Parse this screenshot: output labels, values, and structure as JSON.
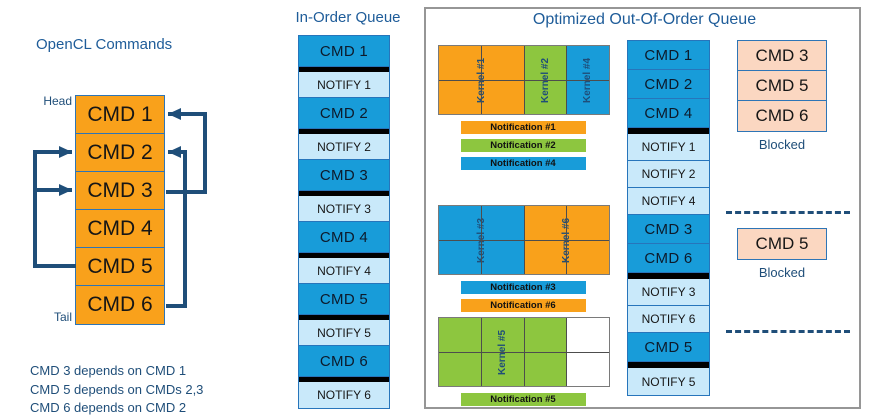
{
  "colors": {
    "orange": "#F9A11B",
    "green": "#8DC63F",
    "blue": "#189CD9",
    "white": "#FFFFFF",
    "notify_blue": "#C9E9FA",
    "blocked_fill": "#FBD7C1",
    "navy": "#1F4E79",
    "title_blue": "#1E5C99"
  },
  "left_panel": {
    "title": "OpenCL Commands",
    "head_label": "Head",
    "tail_label": "Tail",
    "commands": [
      "CMD 1",
      "CMD 2",
      "CMD 3",
      "CMD 4",
      "CMD 5",
      "CMD 6"
    ],
    "dependency_notes": [
      "CMD 3 depends on CMD 1",
      "CMD 5 depends on CMDs 2,3",
      "CMD 6 depends on CMD 2"
    ]
  },
  "in_order_queue": {
    "title": "In-Order Queue",
    "rows": [
      {
        "label": "CMD 1",
        "kind": "cmd",
        "sep": true
      },
      {
        "label": "NOTIFY 1",
        "kind": "notify"
      },
      {
        "label": "CMD 2",
        "kind": "cmd",
        "sep": true
      },
      {
        "label": "NOTIFY 2",
        "kind": "notify"
      },
      {
        "label": "CMD 3",
        "kind": "cmd",
        "sep": true
      },
      {
        "label": "NOTIFY 3",
        "kind": "notify"
      },
      {
        "label": "CMD 4",
        "kind": "cmd",
        "sep": true
      },
      {
        "label": "NOTIFY 4",
        "kind": "notify"
      },
      {
        "label": "CMD 5",
        "kind": "cmd",
        "sep": true
      },
      {
        "label": "NOTIFY 5",
        "kind": "notify"
      },
      {
        "label": "CMD 6",
        "kind": "cmd",
        "sep": true
      },
      {
        "label": "NOTIFY 6",
        "kind": "notify"
      }
    ]
  },
  "ooo_panel": {
    "title": "Optimized Out-Of-Order Queue",
    "kernel_groups": [
      {
        "blocks": [
          {
            "label": "Kernel #1",
            "color": "orange",
            "cols": 2
          },
          {
            "label": "Kernel #2",
            "color": "green",
            "cols": 1
          },
          {
            "label": "Kernel #4",
            "color": "blue",
            "cols": 1
          }
        ],
        "notifications": [
          {
            "label": "Notification #1",
            "color": "orange"
          },
          {
            "label": "Notification #2",
            "color": "green"
          },
          {
            "label": "Notification #4",
            "color": "blue"
          }
        ]
      },
      {
        "blocks": [
          {
            "label": "Kernel #3",
            "color": "blue",
            "cols": 2
          },
          {
            "label": "Kernel #6",
            "color": "orange",
            "cols": 2
          }
        ],
        "notifications": [
          {
            "label": "Notification #3",
            "color": "blue"
          },
          {
            "label": "Notification #6",
            "color": "orange"
          }
        ]
      },
      {
        "blocks": [
          {
            "label": "Kernel #5",
            "color": "green",
            "cols": 3
          },
          {
            "label": "",
            "color": "white",
            "cols": 1
          }
        ],
        "notifications": [
          {
            "label": "Notification #5",
            "color": "green"
          }
        ]
      }
    ],
    "queue_rows": [
      {
        "label": "CMD 1",
        "kind": "cmd"
      },
      {
        "label": "CMD 2",
        "kind": "cmd"
      },
      {
        "label": "CMD 4",
        "kind": "cmd",
        "sep": true
      },
      {
        "label": "NOTIFY 1",
        "kind": "notify"
      },
      {
        "label": "NOTIFY 2",
        "kind": "notify"
      },
      {
        "label": "NOTIFY 4",
        "kind": "notify"
      },
      {
        "label": "CMD 3",
        "kind": "cmd"
      },
      {
        "label": "CMD 6",
        "kind": "cmd",
        "sep": true
      },
      {
        "label": "NOTIFY 3",
        "kind": "notify"
      },
      {
        "label": "NOTIFY 6",
        "kind": "notify"
      },
      {
        "label": "CMD 5",
        "kind": "cmd",
        "sep": true
      },
      {
        "label": "NOTIFY 5",
        "kind": "notify"
      }
    ],
    "blocked_groups": [
      {
        "commands": [
          "CMD 3",
          "CMD 5",
          "CMD 6"
        ],
        "label": "Blocked"
      },
      {
        "commands": [
          "CMD 5"
        ],
        "label": "Blocked"
      }
    ]
  }
}
